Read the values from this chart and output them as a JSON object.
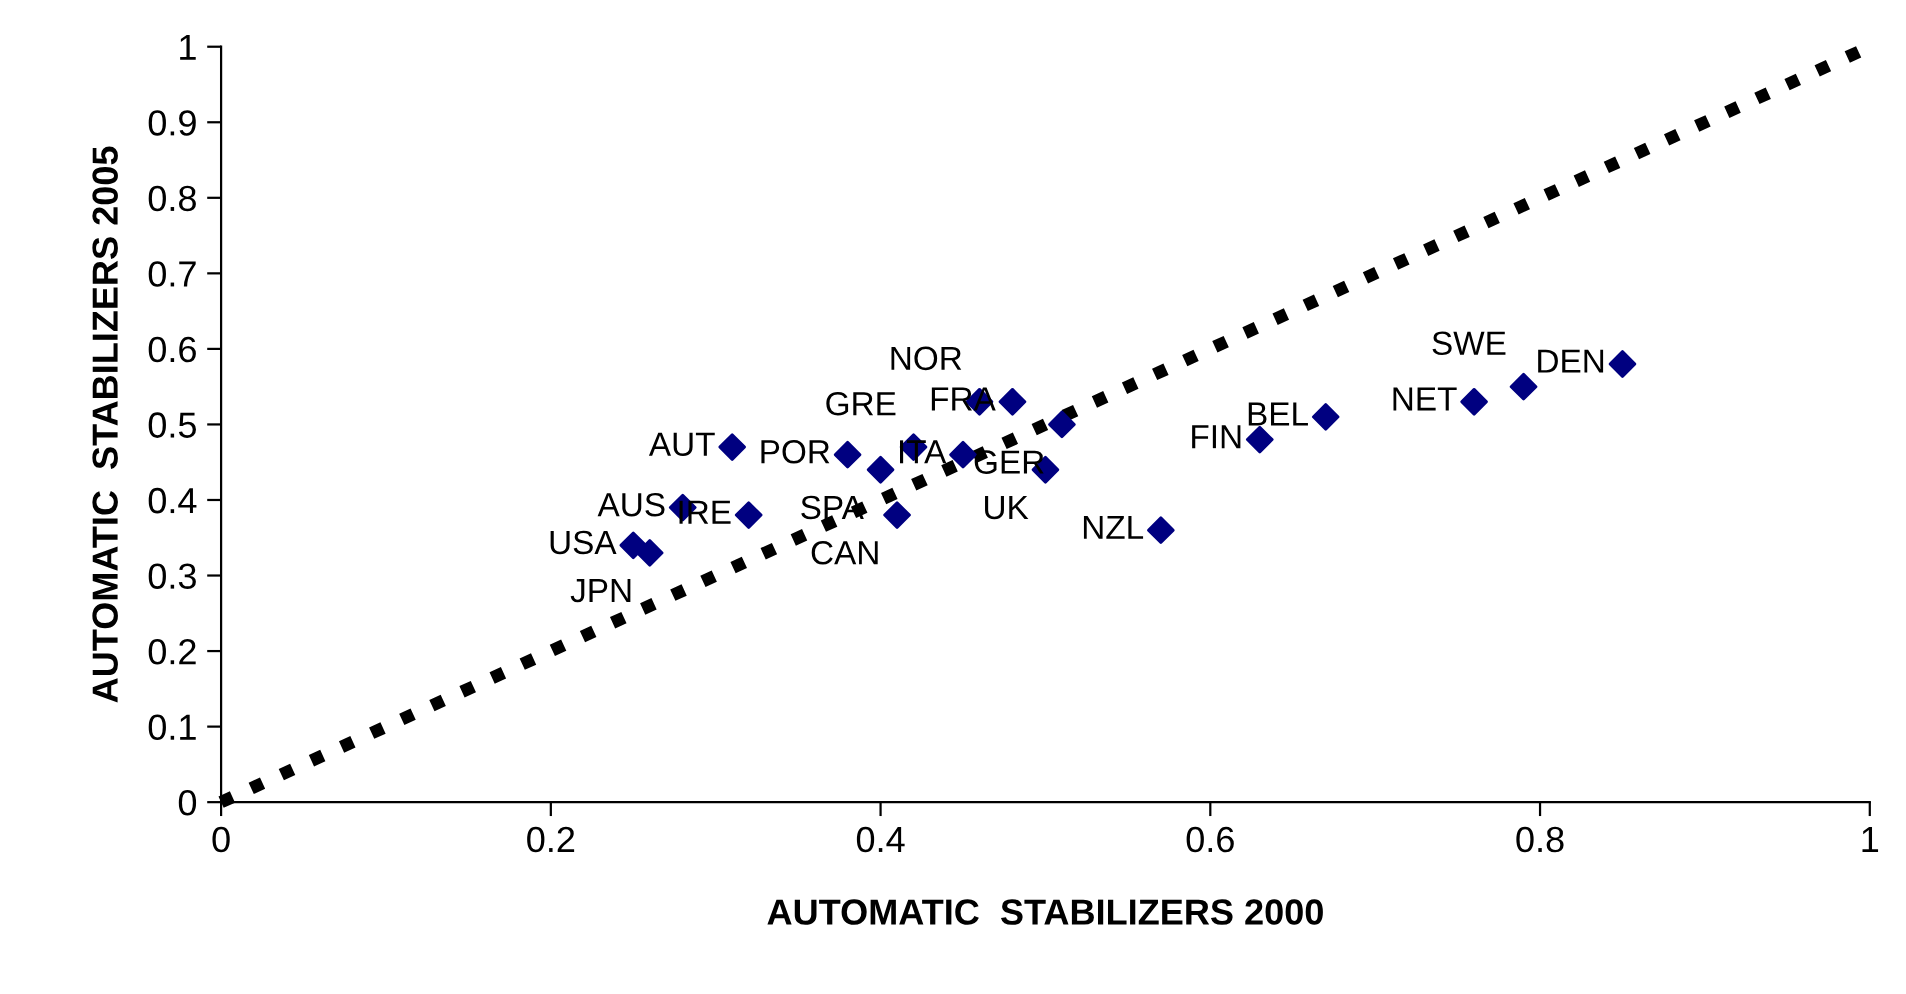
{
  "chart_data": {
    "type": "scatter",
    "xlabel": "AUTOMATIC  STABILIZERS 2000",
    "ylabel": "AUTOMATIC  STABILIZERS 2005",
    "xlim": [
      0,
      1
    ],
    "ylim": [
      0,
      1
    ],
    "xticks": [
      0,
      0.2,
      0.4,
      0.6,
      0.8,
      1
    ],
    "yticks": [
      0,
      0.1,
      0.2,
      0.3,
      0.4,
      0.5,
      0.6,
      0.7,
      0.8,
      0.9,
      1
    ],
    "grid": false,
    "legend": false,
    "series": [
      {
        "color": "#000080",
        "marker": "diamond",
        "x": [
          0.25,
          0.26,
          0.28,
          0.32,
          0.31,
          0.38,
          0.4,
          0.41,
          0.42,
          0.45,
          0.46,
          0.48,
          0.51,
          0.5,
          0.57,
          0.63,
          0.67,
          0.76,
          0.79,
          0.85
        ],
        "values": [
          0.34,
          0.33,
          0.39,
          0.38,
          0.47,
          0.46,
          0.44,
          0.38,
          0.47,
          0.46,
          0.53,
          0.53,
          0.5,
          0.44,
          0.36,
          0.48,
          0.51,
          0.53,
          0.55,
          0.58
        ]
      },
      {
        "type": "line",
        "color": "#000000",
        "line_style": "dotted",
        "marker": "none",
        "x": [
          0,
          1
        ],
        "values": [
          0,
          1
        ]
      }
    ],
    "annotations": [
      {
        "text": "USA",
        "x": 0.25,
        "y": 0.34
      },
      {
        "text": "JPN",
        "x": 0.26,
        "y": 0.33
      },
      {
        "text": "AUS",
        "x": 0.28,
        "y": 0.39
      },
      {
        "text": "IRE",
        "x": 0.32,
        "y": 0.38
      },
      {
        "text": "AUT",
        "x": 0.31,
        "y": 0.47
      },
      {
        "text": "POR",
        "x": 0.38,
        "y": 0.46
      },
      {
        "text": "SPA",
        "x": 0.4,
        "y": 0.44
      },
      {
        "text": "CAN",
        "x": 0.41,
        "y": 0.38
      },
      {
        "text": "GRE",
        "x": 0.42,
        "y": 0.47
      },
      {
        "text": "ITA",
        "x": 0.45,
        "y": 0.46
      },
      {
        "text": "NOR",
        "x": 0.46,
        "y": 0.53
      },
      {
        "text": "FRA",
        "x": 0.48,
        "y": 0.53
      },
      {
        "text": "GER",
        "x": 0.51,
        "y": 0.5
      },
      {
        "text": "UK",
        "x": 0.5,
        "y": 0.44
      },
      {
        "text": "NZL",
        "x": 0.57,
        "y": 0.36
      },
      {
        "text": "FIN",
        "x": 0.63,
        "y": 0.48
      },
      {
        "text": "BEL",
        "x": 0.67,
        "y": 0.51
      },
      {
        "text": "NET",
        "x": 0.76,
        "y": 0.53
      },
      {
        "text": "SWE",
        "x": 0.79,
        "y": 0.55
      },
      {
        "text": "DEN",
        "x": 0.85,
        "y": 0.58
      }
    ]
  }
}
